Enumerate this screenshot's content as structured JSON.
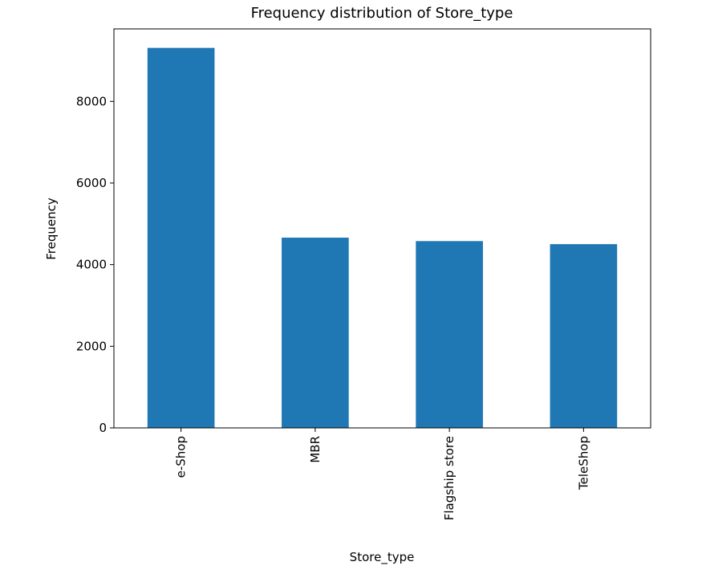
{
  "chart_data": {
    "type": "bar",
    "title": "Frequency distribution of Store_type",
    "xlabel": "Store_type",
    "ylabel": "Frequency",
    "categories": [
      "e-Shop",
      "MBR",
      "Flagship store",
      "TeleShop"
    ],
    "values": [
      9311,
      4661,
      4577,
      4502
    ],
    "ylim": [
      0,
      9776
    ],
    "yticks": [
      0,
      2000,
      4000,
      6000,
      8000
    ],
    "ytick_labels": [
      "0",
      "2000",
      "4000",
      "6000",
      "8000"
    ],
    "bar_color": "#1f77b4",
    "grid": false,
    "legend": "none",
    "x_tick_rotation": "vertical"
  }
}
